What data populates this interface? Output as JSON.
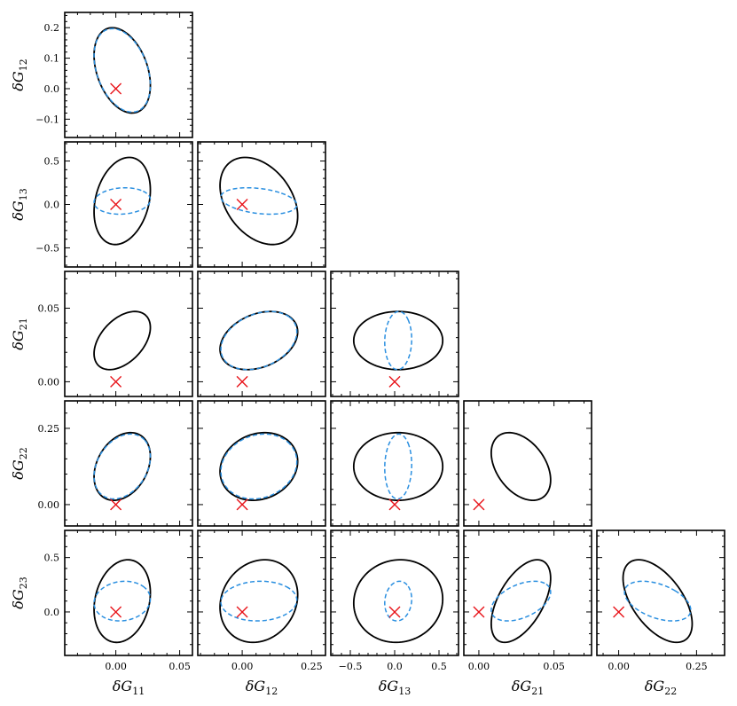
{
  "chart_data": {
    "type": "corner",
    "parameters": [
      {
        "id": "G11",
        "symbol": "δG",
        "sub": "11"
      },
      {
        "id": "G12",
        "symbol": "δG",
        "sub": "12"
      },
      {
        "id": "G13",
        "symbol": "δG",
        "sub": "13"
      },
      {
        "id": "G21",
        "symbol": "δG",
        "sub": "21"
      },
      {
        "id": "G22",
        "symbol": "δG",
        "sub": "22"
      },
      {
        "id": "G23",
        "symbol": "δG",
        "sub": "23"
      }
    ],
    "x_axes": [
      {
        "param": "G11",
        "range": [
          -0.04,
          0.06
        ],
        "ticks": [
          0.0,
          0.05
        ],
        "tick_labels": [
          "0.00",
          "0.05"
        ]
      },
      {
        "param": "G12",
        "range": [
          -0.16,
          0.3
        ],
        "ticks": [
          0.0,
          0.25
        ],
        "tick_labels": [
          "0.00",
          "0.25"
        ]
      },
      {
        "param": "G13",
        "range": [
          -0.72,
          0.72
        ],
        "ticks": [
          -0.5,
          0.0,
          0.5
        ],
        "tick_labels": [
          "−0.5",
          "0.0",
          "0.5"
        ]
      },
      {
        "param": "G21",
        "range": [
          -0.01,
          0.075
        ],
        "ticks": [
          0.0,
          0.05
        ],
        "tick_labels": [
          "0.00",
          "0.05"
        ]
      },
      {
        "param": "G22",
        "range": [
          -0.07,
          0.34
        ],
        "ticks": [
          0.0,
          0.25
        ],
        "tick_labels": [
          "0.00",
          "0.25"
        ]
      }
    ],
    "y_axes": [
      {
        "param": "G12",
        "range": [
          -0.16,
          0.25
        ],
        "ticks": [
          -0.1,
          0.0,
          0.1,
          0.2
        ],
        "tick_labels": [
          "−0.1",
          "0.0",
          "0.1",
          "0.2"
        ]
      },
      {
        "param": "G13",
        "range": [
          -0.72,
          0.72
        ],
        "ticks": [
          -0.5,
          0.0,
          0.5
        ],
        "tick_labels": [
          "−0.5",
          "0.0",
          "0.5"
        ]
      },
      {
        "param": "G21",
        "range": [
          -0.01,
          0.075
        ],
        "ticks": [
          0.0,
          0.05
        ],
        "tick_labels": [
          "0.00",
          "0.05"
        ]
      },
      {
        "param": "G22",
        "range": [
          -0.07,
          0.34
        ],
        "ticks": [
          0.0,
          0.25
        ],
        "tick_labels": [
          "0.00",
          "0.25"
        ]
      },
      {
        "param": "G23",
        "range": [
          -0.4,
          0.75
        ],
        "ticks": [
          0.0,
          0.5
        ],
        "tick_labels": [
          "0.0",
          "0.5"
        ]
      }
    ],
    "fiducial": {
      "G11": 0.0,
      "G12": 0.0,
      "G13": 0.0,
      "G21": 0.0,
      "G22": 0.0,
      "G23": 0.0
    },
    "series": [
      {
        "style": "solid",
        "color": "#000000",
        "center": {
          "G11": 0.005,
          "G12": 0.06,
          "G13": 0.04,
          "G21": 0.028,
          "G22": 0.125,
          "G23": 0.1
        },
        "sigma": {
          "G11": 0.0145,
          "G12": 0.092,
          "G13": 0.33,
          "G21": 0.013,
          "G22": 0.073,
          "G23": 0.25
        },
        "correlation": [
          [
            "G11",
            "G12",
            -0.35
          ],
          [
            "G11",
            "G13",
            0.25
          ],
          [
            "G11",
            "G21",
            0.45
          ],
          [
            "G11",
            "G22",
            0.3
          ],
          [
            "G11",
            "G23",
            0.2
          ],
          [
            "G12",
            "G13",
            -0.35
          ],
          [
            "G12",
            "G21",
            0.3
          ],
          [
            "G12",
            "G22",
            0.15
          ],
          [
            "G12",
            "G23",
            0.15
          ],
          [
            "G13",
            "G21",
            0.0
          ],
          [
            "G13",
            "G22",
            0.0
          ],
          [
            "G13",
            "G23",
            0.05
          ],
          [
            "G21",
            "G22",
            -0.4
          ],
          [
            "G21",
            "G23",
            0.55
          ],
          [
            "G22",
            "G23",
            -0.55
          ]
        ]
      },
      {
        "style": "dashed",
        "color": "#2a8fe0",
        "center": {
          "G11": 0.005,
          "G12": 0.06,
          "G13": 0.04,
          "G21": 0.028,
          "G22": 0.125,
          "G23": 0.1
        },
        "sigma": {
          "G11": 0.0145,
          "G12": 0.09,
          "G13": 0.1,
          "G21": 0.013,
          "G22": 0.07,
          "G23": 0.12
        },
        "correlation": [
          [
            "G11",
            "G12",
            -0.35
          ],
          [
            "G11",
            "G13",
            0.1
          ],
          [
            "G11",
            "G21",
            0.45
          ],
          [
            "G11",
            "G22",
            0.3
          ],
          [
            "G11",
            "G23",
            0.1
          ],
          [
            "G12",
            "G13",
            -0.3
          ],
          [
            "G12",
            "G21",
            0.3
          ],
          [
            "G12",
            "G22",
            0.15
          ],
          [
            "G12",
            "G23",
            0.05
          ],
          [
            "G13",
            "G21",
            0.05
          ],
          [
            "G13",
            "G22",
            0.05
          ],
          [
            "G13",
            "G23",
            0.1
          ],
          [
            "G21",
            "G22",
            -0.4
          ],
          [
            "G21",
            "G23",
            0.45
          ],
          [
            "G22",
            "G23",
            -0.45
          ]
        ]
      }
    ],
    "panels_without_dashed": [
      [
        "G11",
        "G21"
      ],
      [
        "G21",
        "G22"
      ]
    ]
  }
}
